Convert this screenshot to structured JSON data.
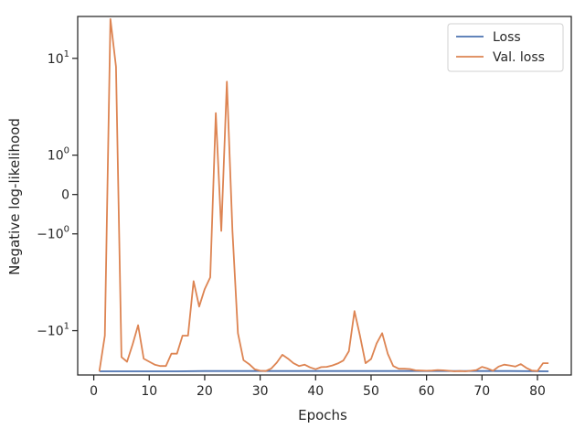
{
  "chart_data": {
    "type": "line",
    "xlabel": "Epochs",
    "ylabel": "Negative log-likelihood",
    "yscale": "symlog",
    "xlim": [
      -2.9,
      86.1
    ],
    "ylim": [
      -23,
      22
    ],
    "grid": false,
    "legend_placement": "top-right",
    "x_ticks": [
      0,
      10,
      20,
      30,
      40,
      50,
      60,
      70,
      80
    ],
    "y_ticks": [
      {
        "value": -10,
        "base": "−10",
        "exp": "1"
      },
      {
        "value": -1,
        "base": "−10",
        "exp": "0"
      },
      {
        "value": 0,
        "base": "0",
        "exp": ""
      },
      {
        "value": 1,
        "base": "10",
        "exp": "0"
      },
      {
        "value": 10,
        "base": "10",
        "exp": "1"
      }
    ],
    "series": [
      {
        "name": "Loss",
        "color": "#4c72b0",
        "x": [
          1,
          5,
          10,
          15,
          20,
          25,
          30,
          35,
          40,
          45,
          50,
          55,
          60,
          65,
          70,
          75,
          82
        ],
        "y": [
          -21.5,
          -21.5,
          -21.5,
          -21.5,
          -21.4,
          -21.4,
          -21.4,
          -21.4,
          -21.4,
          -21.4,
          -21.4,
          -21.4,
          -21.4,
          -21.4,
          -21.4,
          -21.4,
          -21.5
        ]
      },
      {
        "name": "Val. loss",
        "color": "#dd8452",
        "x": [
          1,
          2,
          3,
          4,
          5,
          6,
          7,
          8,
          9,
          10,
          11,
          12,
          13,
          14,
          15,
          16,
          17,
          18,
          19,
          20,
          21,
          22,
          23,
          24,
          25,
          26,
          27,
          28,
          29,
          30,
          31,
          32,
          33,
          34,
          35,
          36,
          37,
          38,
          39,
          40,
          41,
          42,
          43,
          44,
          45,
          46,
          47,
          48,
          49,
          50,
          51,
          52,
          53,
          54,
          55,
          56,
          57,
          58,
          59,
          60,
          61,
          62,
          63,
          64,
          65,
          66,
          67,
          68,
          69,
          70,
          71,
          72,
          73,
          74,
          75,
          76,
          77,
          78,
          79,
          80,
          81,
          82
        ],
        "y": [
          -21.5,
          -11,
          21,
          8.5,
          -16.5,
          -18,
          -13,
          -9,
          -17,
          -18,
          -19,
          -19.5,
          -19.5,
          -15.5,
          -15.5,
          -11,
          -11,
          -3.6,
          -6.2,
          -4.3,
          -3.3,
          3.2,
          -0.9,
          6.3,
          -0.9,
          -10.5,
          -17.5,
          -18.8,
          -20.7,
          -21.3,
          -21.4,
          -20.4,
          -18.3,
          -15.8,
          -17,
          -18.5,
          -19.5,
          -19,
          -20,
          -20.7,
          -19.9,
          -19.8,
          -19.3,
          -18.6,
          -17.6,
          -14.8,
          -6.8,
          -11,
          -18.5,
          -17.1,
          -12.8,
          -10.5,
          -15.5,
          -19.5,
          -20.5,
          -20.5,
          -20.6,
          -21.1,
          -21.2,
          -21.3,
          -21.2,
          -21,
          -21.1,
          -21.3,
          -21.5,
          -21.4,
          -21.5,
          -21.3,
          -21,
          -19.8,
          -20.4,
          -21.3,
          -19.7,
          -19,
          -19.3,
          -19.7,
          -18.8,
          -20.2,
          -21.2,
          -21.4,
          -18.5,
          -18.5
        ]
      }
    ]
  }
}
